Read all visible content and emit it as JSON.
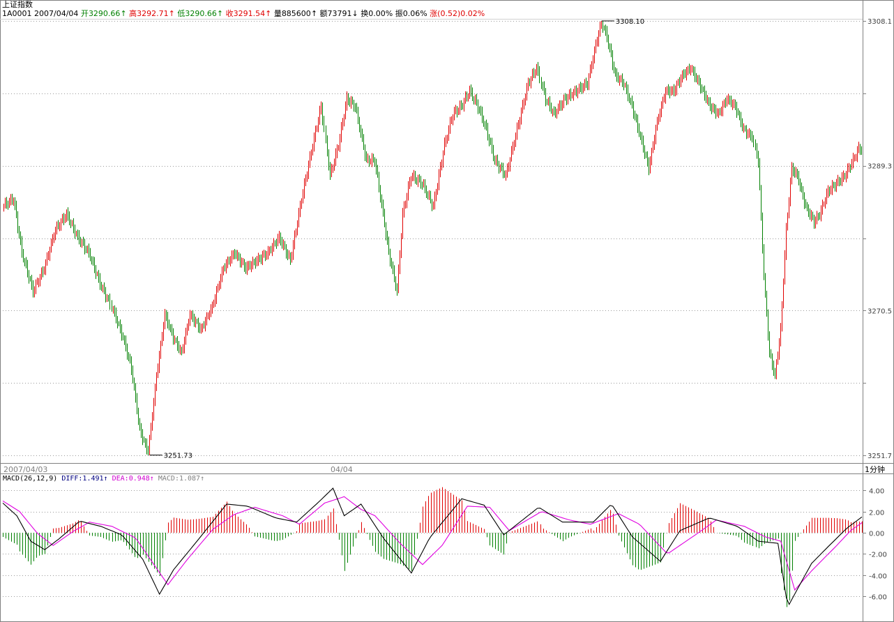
{
  "header": {
    "index_name": "上证指数",
    "code": "1A0001",
    "date": "2007/04/04",
    "open_label": "开",
    "open": "3290.66",
    "open_arrow": "↑",
    "high_label": "高",
    "high": "3292.71",
    "high_arrow": "↑",
    "low_label": "低",
    "low": "3290.66",
    "low_arrow": "↑",
    "close_label": "收",
    "close": "3291.54",
    "close_arrow": "↑",
    "volume_label": "量",
    "volume": "885600",
    "volume_arrow": "↑",
    "amount_label": "额",
    "amount": "73791",
    "amount_arrow": "↓",
    "turnover_label": "换",
    "turnover": "0.00%",
    "amplitude_label": "振",
    "amplitude": "0.06%",
    "change_label": "涨",
    "change": "(0.52)0.02%"
  },
  "period_label": "1分钟",
  "time_axis": {
    "left_date": "2007/04/03",
    "mid_date": "04/04"
  },
  "macd_header": {
    "name": "MACD(26,12,9)",
    "diff_label": "DIFF:",
    "diff": "1.491",
    "diff_arrow": "↑",
    "dea_label": "DEA:",
    "dea": "0.948",
    "dea_arrow": "↑",
    "macd_label": "MACD:",
    "macd": "1.087",
    "macd_arrow": "↑"
  },
  "colors": {
    "up": "#e00000",
    "down": "#008000",
    "diff": "#000000",
    "dea": "#e000e0",
    "grid": "#999999"
  },
  "chart_data": [
    {
      "type": "bar",
      "subtype": "ohlc",
      "title": "上证指数",
      "y_tick_labels": [
        "3308.1",
        "3289.3",
        "3270.5",
        "3251.7"
      ],
      "ylim": [
        3251.7,
        3308.1
      ],
      "annotations": [
        {
          "text": "3308.10",
          "value": 3308.1
        },
        {
          "text": "3251.73",
          "value": 3251.73
        }
      ],
      "grid": true,
      "anchors": [
        [
          0,
          3284
        ],
        [
          8,
          3285
        ],
        [
          14,
          3278
        ],
        [
          22,
          3273
        ],
        [
          30,
          3276
        ],
        [
          38,
          3281
        ],
        [
          46,
          3283
        ],
        [
          54,
          3280
        ],
        [
          62,
          3278
        ],
        [
          70,
          3274
        ],
        [
          78,
          3271
        ],
        [
          86,
          3267
        ],
        [
          92,
          3263
        ],
        [
          98,
          3255
        ],
        [
          104,
          3252
        ],
        [
          110,
          3262
        ],
        [
          116,
          3270
        ],
        [
          122,
          3267
        ],
        [
          128,
          3265
        ],
        [
          134,
          3270
        ],
        [
          142,
          3268
        ],
        [
          150,
          3271
        ],
        [
          158,
          3276
        ],
        [
          166,
          3278
        ],
        [
          174,
          3276
        ],
        [
          182,
          3277
        ],
        [
          190,
          3278
        ],
        [
          198,
          3280
        ],
        [
          206,
          3277
        ],
        [
          214,
          3285
        ],
        [
          222,
          3292
        ],
        [
          228,
          3297
        ],
        [
          234,
          3288
        ],
        [
          240,
          3292
        ],
        [
          246,
          3298
        ],
        [
          252,
          3297
        ],
        [
          260,
          3290
        ],
        [
          266,
          3290
        ],
        [
          272,
          3283
        ],
        [
          276,
          3278
        ],
        [
          282,
          3273
        ],
        [
          286,
          3283
        ],
        [
          292,
          3288
        ],
        [
          300,
          3287
        ],
        [
          308,
          3284
        ],
        [
          316,
          3292
        ],
        [
          322,
          3296
        ],
        [
          328,
          3297
        ],
        [
          334,
          3299
        ],
        [
          340,
          3297
        ],
        [
          346,
          3294
        ],
        [
          352,
          3290
        ],
        [
          360,
          3288
        ],
        [
          368,
          3294
        ],
        [
          376,
          3300
        ],
        [
          382,
          3302
        ],
        [
          388,
          3298
        ],
        [
          394,
          3296
        ],
        [
          402,
          3298
        ],
        [
          410,
          3299
        ],
        [
          418,
          3300
        ],
        [
          424,
          3305
        ],
        [
          428,
          3308
        ],
        [
          432,
          3306
        ],
        [
          438,
          3301
        ],
        [
          444,
          3300
        ],
        [
          450,
          3297
        ],
        [
          456,
          3293
        ],
        [
          462,
          3289
        ],
        [
          468,
          3295
        ],
        [
          474,
          3299
        ],
        [
          480,
          3299
        ],
        [
          486,
          3301
        ],
        [
          492,
          3302
        ],
        [
          498,
          3300
        ],
        [
          506,
          3297
        ],
        [
          512,
          3296
        ],
        [
          518,
          3298
        ],
        [
          524,
          3297
        ],
        [
          530,
          3294
        ],
        [
          536,
          3293
        ],
        [
          540,
          3290
        ],
        [
          544,
          3275
        ],
        [
          548,
          3265
        ],
        [
          552,
          3262
        ],
        [
          556,
          3268
        ],
        [
          560,
          3281
        ],
        [
          564,
          3289
        ],
        [
          568,
          3288
        ],
        [
          574,
          3284
        ],
        [
          580,
          3282
        ],
        [
          584,
          3283
        ],
        [
          590,
          3286
        ],
        [
          596,
          3287
        ],
        [
          602,
          3288
        ],
        [
          608,
          3290
        ],
        [
          612,
          3291.5
        ]
      ],
      "n_bars": 614,
      "xlim": [
        0,
        614
      ]
    },
    {
      "type": "bar",
      "subtype": "macd",
      "title": "MACD(26,12,9)",
      "y_tick_labels": [
        "4.00",
        "2.00",
        "0.00",
        "-2.00",
        "-4.00",
        "-6.00"
      ],
      "ylim": [
        -7.5,
        4.6
      ],
      "series": [
        {
          "name": "DIFF",
          "anchors": [
            [
              0,
              2.8
            ],
            [
              10,
              1.6
            ],
            [
              20,
              -0.8
            ],
            [
              30,
              -1.6
            ],
            [
              40,
              -0.6
            ],
            [
              55,
              1.1
            ],
            [
              70,
              0.6
            ],
            [
              85,
              -0.2
            ],
            [
              100,
              -2.5
            ],
            [
              112,
              -5.8
            ],
            [
              122,
              -3.5
            ],
            [
              140,
              -0.6
            ],
            [
              160,
              2.7
            ],
            [
              175,
              2.5
            ],
            [
              195,
              1.4
            ],
            [
              210,
              1.0
            ],
            [
              225,
              2.8
            ],
            [
              236,
              4.2
            ],
            [
              244,
              1.6
            ],
            [
              256,
              2.7
            ],
            [
              272,
              -0.5
            ],
            [
              292,
              -3.8
            ],
            [
              305,
              -0.5
            ],
            [
              328,
              3.2
            ],
            [
              344,
              2.6
            ],
            [
              358,
              -0.2
            ],
            [
              383,
              2.4
            ],
            [
              400,
              1.0
            ],
            [
              422,
              1.0
            ],
            [
              435,
              2.7
            ],
            [
              450,
              -0.4
            ],
            [
              470,
              -2.7
            ],
            [
              484,
              0.2
            ],
            [
              505,
              1.4
            ],
            [
              525,
              0.6
            ],
            [
              540,
              -0.8
            ],
            [
              554,
              -1.0
            ],
            [
              561,
              -7.0
            ],
            [
              568,
              -5.3
            ],
            [
              578,
              -2.9
            ],
            [
              590,
              -1.3
            ],
            [
              603,
              0.4
            ],
            [
              614,
              1.49
            ]
          ]
        },
        {
          "name": "DEA",
          "anchors": [
            [
              0,
              3.0
            ],
            [
              12,
              2.0
            ],
            [
              25,
              -0.1
            ],
            [
              36,
              -1.2
            ],
            [
              50,
              0.1
            ],
            [
              62,
              1.0
            ],
            [
              78,
              0.6
            ],
            [
              95,
              -0.5
            ],
            [
              108,
              -3.0
            ],
            [
              118,
              -4.9
            ],
            [
              132,
              -2.5
            ],
            [
              150,
              0.3
            ],
            [
              165,
              1.7
            ],
            [
              180,
              2.4
            ],
            [
              200,
              1.6
            ],
            [
              212,
              0.8
            ],
            [
              230,
              2.8
            ],
            [
              244,
              3.4
            ],
            [
              256,
              2.2
            ],
            [
              266,
              1.6
            ],
            [
              284,
              -1.0
            ],
            [
              300,
              -3.0
            ],
            [
              314,
              -1.2
            ],
            [
              332,
              2.5
            ],
            [
              348,
              2.4
            ],
            [
              362,
              0.2
            ],
            [
              385,
              2.0
            ],
            [
              405,
              1.2
            ],
            [
              420,
              0.8
            ],
            [
              440,
              1.8
            ],
            [
              455,
              0.8
            ],
            [
              475,
              -2.0
            ],
            [
              495,
              -0.2
            ],
            [
              510,
              1.2
            ],
            [
              530,
              0.6
            ],
            [
              545,
              -0.4
            ],
            [
              556,
              -0.8
            ],
            [
              566,
              -5.4
            ],
            [
              578,
              -3.6
            ],
            [
              596,
              -1.2
            ],
            [
              606,
              0.2
            ],
            [
              614,
              0.95
            ]
          ]
        }
      ],
      "grid": true,
      "xlim": [
        0,
        614
      ]
    }
  ]
}
